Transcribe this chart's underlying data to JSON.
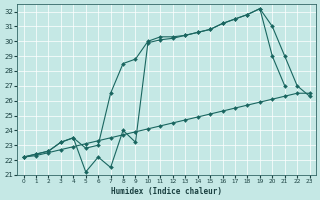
{
  "bg_color": "#c5e8e5",
  "grid_color": "#b0d8d5",
  "line_color": "#1a6660",
  "line_top_x": [
    0,
    1,
    2,
    3,
    4,
    5,
    6,
    7,
    8,
    9,
    10,
    11,
    12,
    13,
    14,
    15,
    16,
    17,
    18,
    19,
    20,
    21,
    22,
    23
  ],
  "line_top_y": [
    22.2,
    22.4,
    22.6,
    23.2,
    23.5,
    22.8,
    23.0,
    26.5,
    28.5,
    28.8,
    30.0,
    30.3,
    30.3,
    30.4,
    30.6,
    30.8,
    31.2,
    31.5,
    31.8,
    32.2,
    31.0,
    29.0,
    27.0,
    26.3
  ],
  "line_mid_x": [
    0,
    1,
    2,
    3,
    4,
    5,
    6,
    7,
    8,
    9,
    10,
    11,
    12,
    13,
    14,
    15,
    16,
    17,
    18,
    19,
    20,
    21,
    22,
    23
  ],
  "line_mid_y": [
    22.2,
    22.4,
    22.6,
    23.2,
    23.5,
    21.2,
    22.2,
    21.5,
    24.0,
    23.2,
    29.9,
    30.1,
    30.2,
    30.4,
    30.6,
    30.8,
    31.2,
    31.5,
    31.8,
    32.2,
    29.0,
    27.0,
    null,
    null
  ],
  "line_bot_x": [
    0,
    1,
    2,
    3,
    4,
    5,
    6,
    7,
    8,
    9,
    10,
    11,
    12,
    13,
    14,
    15,
    16,
    17,
    18,
    19,
    20,
    21,
    22,
    23
  ],
  "line_bot_y": [
    22.2,
    22.3,
    22.5,
    22.7,
    22.9,
    23.1,
    23.3,
    23.5,
    23.7,
    23.9,
    24.1,
    24.3,
    24.5,
    24.7,
    24.9,
    25.1,
    25.3,
    25.5,
    25.7,
    25.9,
    26.1,
    26.3,
    26.5,
    26.5
  ],
  "xlim": [
    -0.5,
    23.5
  ],
  "ylim": [
    21,
    32.5
  ],
  "yticks": [
    21,
    22,
    23,
    24,
    25,
    26,
    27,
    28,
    29,
    30,
    31,
    32
  ],
  "xticks": [
    0,
    1,
    2,
    3,
    4,
    5,
    6,
    7,
    8,
    9,
    10,
    11,
    12,
    13,
    14,
    15,
    16,
    17,
    18,
    19,
    20,
    21,
    22,
    23
  ],
  "xlabel": "Humidex (Indice chaleur)",
  "markersize": 2.0,
  "linewidth": 0.8
}
